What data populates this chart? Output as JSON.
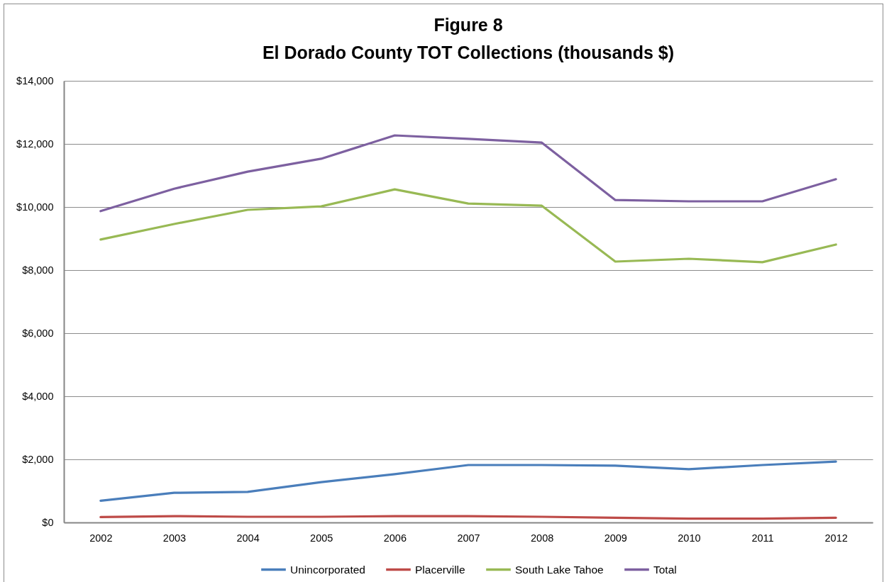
{
  "chart_data": {
    "type": "line",
    "title": "Figure 8",
    "subtitle": "El Dorado County TOT Collections (thousands $)",
    "categories": [
      "2002",
      "2003",
      "2004",
      "2005",
      "2006",
      "2007",
      "2008",
      "2009",
      "2010",
      "2011",
      "2012"
    ],
    "series": [
      {
        "name": "Unincorporated",
        "color": "#4a7ebb",
        "values": [
          690,
          940,
          970,
          1280,
          1530,
          1820,
          1820,
          1800,
          1690,
          1820,
          1930
        ]
      },
      {
        "name": "Placerville",
        "color": "#be4b48",
        "values": [
          170,
          200,
          180,
          180,
          200,
          200,
          180,
          150,
          120,
          120,
          150
        ]
      },
      {
        "name": "South Lake Tahoe",
        "color": "#98b954",
        "values": [
          8970,
          9460,
          9910,
          10020,
          10560,
          10110,
          10040,
          8270,
          8360,
          8250,
          8810
        ]
      },
      {
        "name": "Total",
        "color": "#7d60a0",
        "values": [
          9870,
          10580,
          11120,
          11530,
          12270,
          12160,
          12040,
          10220,
          10180,
          10180,
          10880
        ]
      }
    ],
    "ylim": [
      0,
      14000
    ],
    "yticks": [
      {
        "value": 0,
        "label": "$0"
      },
      {
        "value": 2000,
        "label": "$2,000"
      },
      {
        "value": 4000,
        "label": "$4,000"
      },
      {
        "value": 6000,
        "label": "$6,000"
      },
      {
        "value": 8000,
        "label": "$8,000"
      },
      {
        "value": 10000,
        "label": "$10,000"
      },
      {
        "value": 12000,
        "label": "$12,000"
      },
      {
        "value": 14000,
        "label": "$14,000"
      }
    ],
    "grid": "y",
    "legend": "bottom"
  }
}
